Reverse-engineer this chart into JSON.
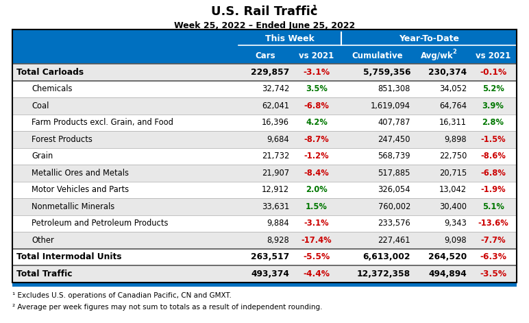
{
  "title": "U.S. Rail Traffic",
  "subtitle": "Week 25, 2022 – Ended June 25, 2022",
  "header1_label": "This Week",
  "header2_label": "Year-To-Date",
  "rows": [
    {
      "label": "Total Carloads",
      "bold": true,
      "bg": "#e8e8e8",
      "indent": false,
      "cars": "229,857",
      "vs2021_tw": "-3.1%",
      "vs2021_tw_color": "#cc0000",
      "cumulative": "5,759,356",
      "avgwk": "230,374",
      "vs2021_ytd": "-0.1%",
      "vs2021_ytd_color": "#cc0000"
    },
    {
      "label": "Chemicals",
      "bold": false,
      "bg": "#ffffff",
      "indent": true,
      "cars": "32,742",
      "vs2021_tw": "3.5%",
      "vs2021_tw_color": "#007700",
      "cumulative": "851,308",
      "avgwk": "34,052",
      "vs2021_ytd": "5.2%",
      "vs2021_ytd_color": "#007700"
    },
    {
      "label": "Coal",
      "bold": false,
      "bg": "#e8e8e8",
      "indent": true,
      "cars": "62,041",
      "vs2021_tw": "-6.8%",
      "vs2021_tw_color": "#cc0000",
      "cumulative": "1,619,094",
      "avgwk": "64,764",
      "vs2021_ytd": "3.9%",
      "vs2021_ytd_color": "#007700"
    },
    {
      "label": "Farm Products excl. Grain, and Food",
      "bold": false,
      "bg": "#ffffff",
      "indent": true,
      "cars": "16,396",
      "vs2021_tw": "4.2%",
      "vs2021_tw_color": "#007700",
      "cumulative": "407,787",
      "avgwk": "16,311",
      "vs2021_ytd": "2.8%",
      "vs2021_ytd_color": "#007700"
    },
    {
      "label": "Forest Products",
      "bold": false,
      "bg": "#e8e8e8",
      "indent": true,
      "cars": "9,684",
      "vs2021_tw": "-8.7%",
      "vs2021_tw_color": "#cc0000",
      "cumulative": "247,450",
      "avgwk": "9,898",
      "vs2021_ytd": "-1.5%",
      "vs2021_ytd_color": "#cc0000"
    },
    {
      "label": "Grain",
      "bold": false,
      "bg": "#ffffff",
      "indent": true,
      "cars": "21,732",
      "vs2021_tw": "-1.2%",
      "vs2021_tw_color": "#cc0000",
      "cumulative": "568,739",
      "avgwk": "22,750",
      "vs2021_ytd": "-8.6%",
      "vs2021_ytd_color": "#cc0000"
    },
    {
      "label": "Metallic Ores and Metals",
      "bold": false,
      "bg": "#e8e8e8",
      "indent": true,
      "cars": "21,907",
      "vs2021_tw": "-8.4%",
      "vs2021_tw_color": "#cc0000",
      "cumulative": "517,885",
      "avgwk": "20,715",
      "vs2021_ytd": "-6.8%",
      "vs2021_ytd_color": "#cc0000"
    },
    {
      "label": "Motor Vehicles and Parts",
      "bold": false,
      "bg": "#ffffff",
      "indent": true,
      "cars": "12,912",
      "vs2021_tw": "2.0%",
      "vs2021_tw_color": "#007700",
      "cumulative": "326,054",
      "avgwk": "13,042",
      "vs2021_ytd": "-1.9%",
      "vs2021_ytd_color": "#cc0000"
    },
    {
      "label": "Nonmetallic Minerals",
      "bold": false,
      "bg": "#e8e8e8",
      "indent": true,
      "cars": "33,631",
      "vs2021_tw": "1.5%",
      "vs2021_tw_color": "#007700",
      "cumulative": "760,002",
      "avgwk": "30,400",
      "vs2021_ytd": "5.1%",
      "vs2021_ytd_color": "#007700"
    },
    {
      "label": "Petroleum and Petroleum Products",
      "bold": false,
      "bg": "#ffffff",
      "indent": true,
      "cars": "9,884",
      "vs2021_tw": "-3.1%",
      "vs2021_tw_color": "#cc0000",
      "cumulative": "233,576",
      "avgwk": "9,343",
      "vs2021_ytd": "-13.6%",
      "vs2021_ytd_color": "#cc0000"
    },
    {
      "label": "Other",
      "bold": false,
      "bg": "#e8e8e8",
      "indent": true,
      "cars": "8,928",
      "vs2021_tw": "-17.4%",
      "vs2021_tw_color": "#cc0000",
      "cumulative": "227,461",
      "avgwk": "9,098",
      "vs2021_ytd": "-7.7%",
      "vs2021_ytd_color": "#cc0000"
    },
    {
      "label": "Total Intermodal Units",
      "bold": true,
      "bg": "#ffffff",
      "indent": false,
      "cars": "263,517",
      "vs2021_tw": "-5.5%",
      "vs2021_tw_color": "#cc0000",
      "cumulative": "6,613,002",
      "avgwk": "264,520",
      "vs2021_ytd": "-6.3%",
      "vs2021_ytd_color": "#cc0000"
    },
    {
      "label": "Total Traffic",
      "bold": true,
      "bg": "#e8e8e8",
      "indent": false,
      "cars": "493,374",
      "vs2021_tw": "-4.4%",
      "vs2021_tw_color": "#cc0000",
      "cumulative": "12,372,358",
      "avgwk": "494,894",
      "vs2021_ytd": "-3.5%",
      "vs2021_ytd_color": "#cc0000"
    }
  ],
  "footnote1": "¹ Excludes U.S. operations of Canadian Pacific, CN and GMXT.",
  "footnote2": "² Average per week figures may not sum to totals as a result of independent rounding.",
  "header_blue": "#0070c0"
}
